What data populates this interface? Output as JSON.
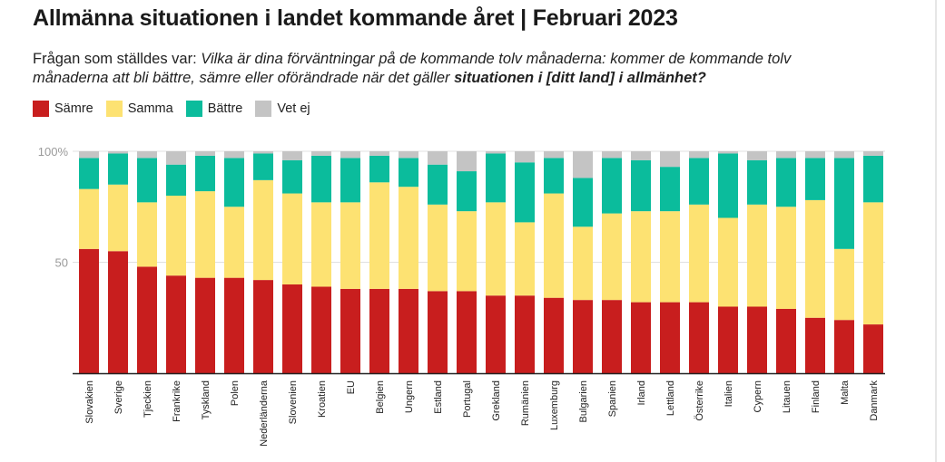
{
  "title": "Allmänna situationen i landet kommande året | Februari 2023",
  "subtitle": {
    "prefix": "Frågan som ställdes var: ",
    "question": "Vilka är dina förväntningar på de kommande tolv månaderna: kommer de kommande tolv månaderna att bli bättre, sämre eller oförändrade när det gäller ",
    "emphasis": "situationen i [ditt land] i allmänhet?"
  },
  "chart_data": {
    "type": "bar",
    "stacked": true,
    "title": "Allmänna situationen i landet kommande året | Februari 2023",
    "xlabel": "",
    "ylabel": "",
    "ylim": [
      0,
      100
    ],
    "yticks": [
      {
        "value": 50,
        "label": "50"
      },
      {
        "value": 100,
        "label": "100%"
      }
    ],
    "grid": true,
    "legend_position": "top-left",
    "categories": [
      "Slovakien",
      "Sverige",
      "Tjeckien",
      "Frankrike",
      "Tyskland",
      "Polen",
      "Nederländerna",
      "Slovenien",
      "Kroatien",
      "EU",
      "Belgien",
      "Ungern",
      "Estland",
      "Portugal",
      "Grekland",
      "Rumänien",
      "Luxemburg",
      "Bulgarien",
      "Spanien",
      "Irland",
      "Lettland",
      "Österrike",
      "Italien",
      "Cypern",
      "Litauen",
      "Finland",
      "Malta",
      "Danmark"
    ],
    "series": [
      {
        "name": "Sämre",
        "color": "#c81e1e",
        "values": [
          56,
          55,
          48,
          44,
          43,
          43,
          42,
          40,
          39,
          38,
          38,
          38,
          37,
          37,
          35,
          35,
          34,
          33,
          33,
          32,
          32,
          32,
          30,
          30,
          29,
          25,
          24,
          22
        ]
      },
      {
        "name": "Samma",
        "color": "#fde272",
        "values": [
          27,
          30,
          29,
          36,
          39,
          32,
          45,
          41,
          38,
          39,
          48,
          46,
          39,
          36,
          42,
          33,
          47,
          33,
          39,
          41,
          41,
          44,
          40,
          46,
          46,
          53,
          32,
          55
        ]
      },
      {
        "name": "Bättre",
        "color": "#0bbc9c",
        "values": [
          14,
          14,
          20,
          14,
          16,
          22,
          12,
          15,
          21,
          20,
          12,
          13,
          18,
          18,
          22,
          27,
          16,
          22,
          25,
          23,
          20,
          21,
          29,
          20,
          22,
          19,
          41,
          21
        ]
      },
      {
        "name": "Vet ej",
        "color": "#c4c4c4",
        "values": [
          3,
          1,
          3,
          6,
          2,
          3,
          1,
          4,
          2,
          3,
          2,
          3,
          6,
          9,
          1,
          5,
          3,
          12,
          3,
          4,
          7,
          3,
          1,
          4,
          3,
          3,
          3,
          2
        ]
      }
    ]
  }
}
